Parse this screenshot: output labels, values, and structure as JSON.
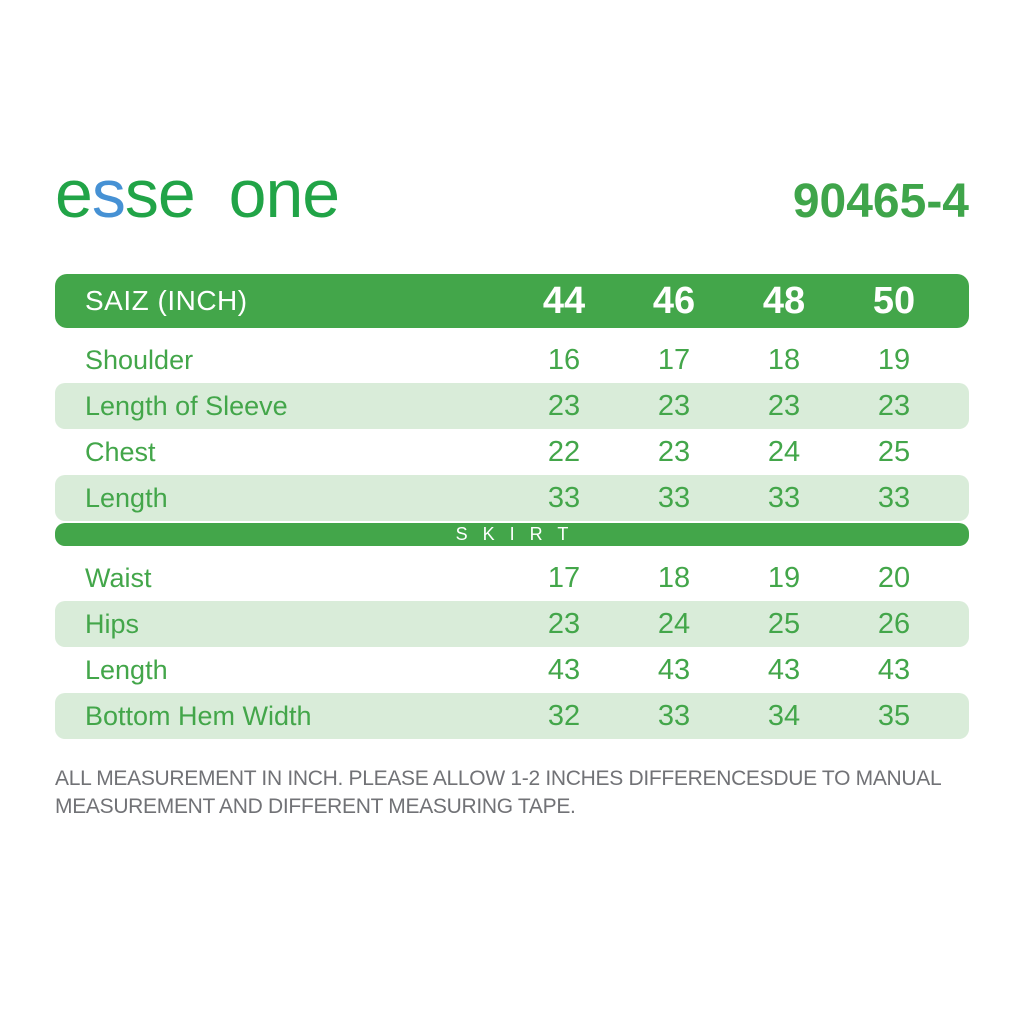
{
  "brand": {
    "logo_seg1": "e",
    "logo_seg2": "s",
    "logo_seg3": "se",
    "logo_seg4": "one",
    "product_code": "90465-4"
  },
  "colors": {
    "logo_green": "#21a447",
    "logo_blue": "#4691d4",
    "bar_green": "#43a64a",
    "light_row_green": "#d9ecd9",
    "note_gray": "#717276"
  },
  "size_table": {
    "header_label": "SAIZ (INCH)",
    "sizes": [
      "44",
      "46",
      "48",
      "50"
    ],
    "blouse_rows": [
      {
        "label": "Shoulder",
        "values": [
          "16",
          "17",
          "18",
          "19"
        ]
      },
      {
        "label": "Length of Sleeve",
        "values": [
          "23",
          "23",
          "23",
          "23"
        ]
      },
      {
        "label": "Chest",
        "values": [
          "22",
          "23",
          "24",
          "25"
        ]
      },
      {
        "label": "Length",
        "values": [
          "33",
          "33",
          "33",
          "33"
        ]
      }
    ],
    "section_divider": "SKIRT",
    "skirt_rows": [
      {
        "label": "Waist",
        "values": [
          "17",
          "18",
          "19",
          "20"
        ]
      },
      {
        "label": "Hips",
        "values": [
          "23",
          "24",
          "25",
          "26"
        ]
      },
      {
        "label": "Length",
        "values": [
          "43",
          "43",
          "43",
          "43"
        ]
      },
      {
        "label": "Bottom Hem Width",
        "values": [
          "32",
          "33",
          "34",
          "35"
        ]
      }
    ]
  },
  "footer": {
    "note": "ALL MEASUREMENT IN INCH. PLEASE ALLOW 1-2 INCHES DIFFERENCESDUE TO MANUAL MEASUREMENT AND DIFFERENT MEASURING TAPE."
  }
}
